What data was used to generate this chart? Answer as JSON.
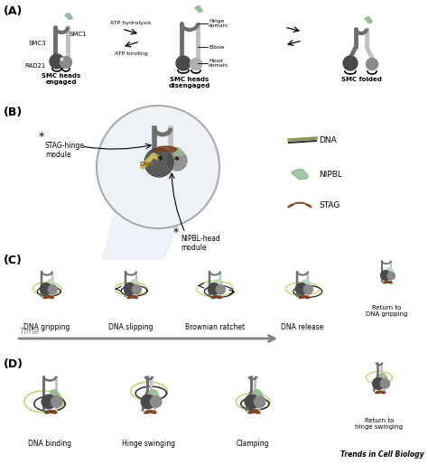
{
  "bg_color": "#ffffff",
  "section_labels": [
    "(A)",
    "(B)",
    "(C)",
    "(D)"
  ],
  "section_label_fontsize": 9,
  "colors": {
    "smc_dark": "#6e6e6e",
    "smc_light": "#c0c0c0",
    "head_dark": "#4a4a4a",
    "head_med": "#8a8a8a",
    "head_light": "#b0b0b0",
    "nipbl_green": "#90b890",
    "nipbl_light": "#b8d8b8",
    "stag_brown": "#7a4020",
    "dna_olive": "#8a9a5a",
    "dna_yellow": "#c8c870",
    "dna_dark": "#2a2a2a",
    "hinge_top": "#909090",
    "arrow_gray": "#808080"
  },
  "panel_A": {
    "labels": [
      "SMC heads\nengaged",
      "SMC heads\ndisengaged",
      "SMC folded"
    ],
    "annotations": [
      "SMC3",
      "SMC1",
      "RAD21",
      "Hinge\ndomain",
      "Elbow",
      "Head\ndomain"
    ],
    "arrow_labels": [
      "ATP hydrolysis",
      "ATP binding"
    ]
  },
  "panel_B": {
    "module_labels": [
      "STAG-hinge\nmodule",
      "NIPBL-head\nmodule"
    ],
    "legend_items": [
      "DNA",
      "NIPBL",
      "STAG"
    ]
  },
  "panel_C": {
    "labels": [
      "DNA gripping",
      "DNA slipping",
      "Brownian ratchet",
      "DNA release"
    ],
    "return_label": "Return to\nDNA gripping",
    "time_label": "Time"
  },
  "panel_D": {
    "labels": [
      "DNA binding",
      "Hinge swinging",
      "Clamping"
    ],
    "return_label": "Return to\nhinge swinging"
  },
  "trends_label": "Trends in Cell Biology"
}
